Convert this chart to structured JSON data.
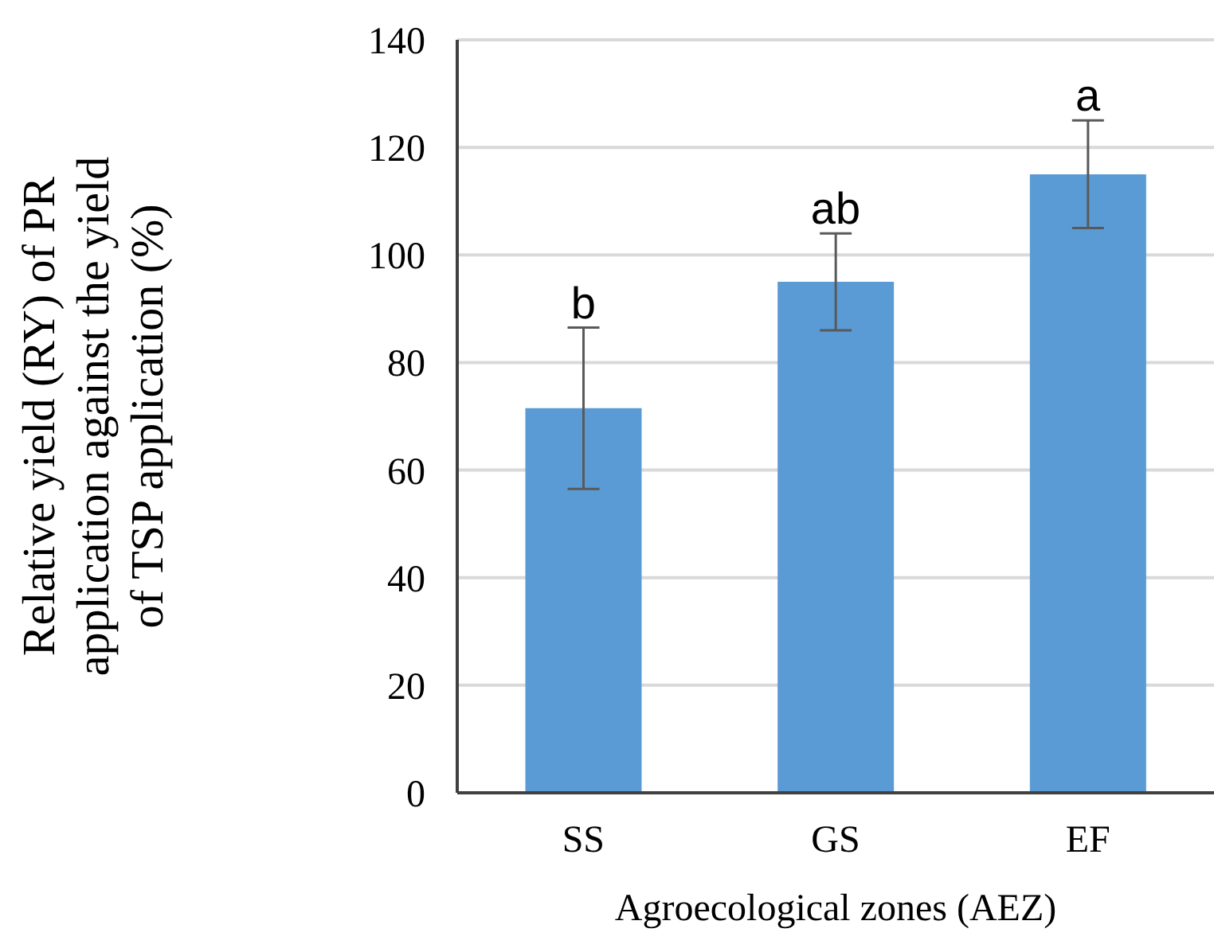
{
  "chart_data": {
    "type": "bar",
    "xlabel": "Agroecological zones (AEZ)",
    "ylabel": "Relative yield (RY) of PR application against the yield of TSP application (%)",
    "categories": [
      "SS",
      "GS",
      "EF"
    ],
    "values": [
      71.5,
      95,
      115
    ],
    "errors": [
      15,
      9,
      10
    ],
    "color": "#5b9bd5",
    "ylim": [
      0,
      140
    ],
    "yticks": [
      0,
      20,
      40,
      60,
      80,
      100,
      120,
      140
    ],
    "grid": "y",
    "annotations": [
      {
        "text": "b",
        "x": "SS",
        "y": 86.5
      },
      {
        "text": "ab",
        "x": "GS",
        "y": 104
      },
      {
        "text": "a",
        "x": "EF",
        "y": 125
      }
    ]
  }
}
